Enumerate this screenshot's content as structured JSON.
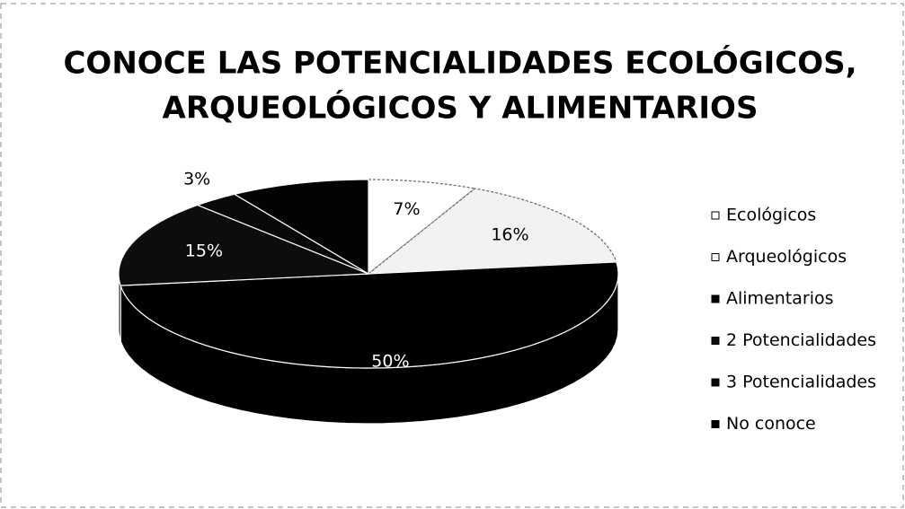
{
  "chart_data": {
    "type": "pie3d",
    "title": [
      "CONOCE LAS POTENCIALIDADES ECOLÓGICOS,",
      "ARQUEOLÓGICOS Y ALIMENTARIOS"
    ],
    "categories": [
      "Ecológicos",
      "Arqueológicos",
      "Alimentarios",
      "2 Potencialidades",
      "3 Potencialidades",
      "No conoce"
    ],
    "values": [
      7,
      16,
      50,
      15,
      3,
      9
    ],
    "value_labels": [
      "7%",
      "16%",
      "50%",
      "15%",
      "3%",
      null
    ],
    "colors": [
      "#ffffff",
      "#f2f2f2",
      "#000000",
      "#0d0d0d",
      "#080808",
      "#030303"
    ],
    "legend": "right"
  }
}
